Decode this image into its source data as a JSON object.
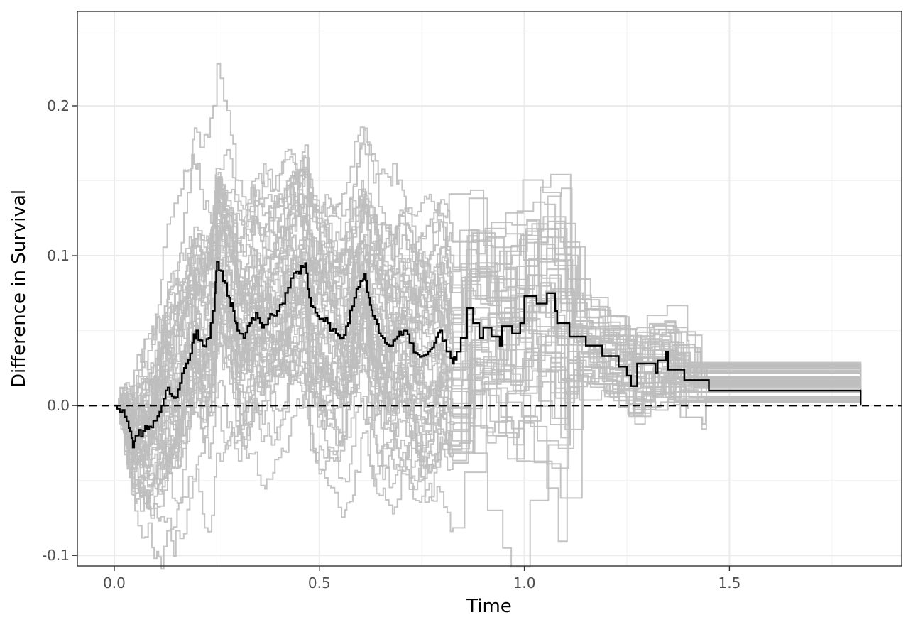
{
  "chart_data": {
    "type": "line",
    "title": "",
    "xlabel": "Time",
    "ylabel": "Difference in Survival",
    "xlim": [
      -0.09,
      1.92
    ],
    "ylim": [
      -0.107,
      0.263
    ],
    "x_ticks": [
      0.0,
      0.5,
      1.0,
      1.5
    ],
    "x_tick_labels": [
      "0.0",
      "0.5",
      "1.0",
      "1.5"
    ],
    "y_ticks": [
      -0.1,
      0.0,
      0.1,
      0.2
    ],
    "y_tick_labels": [
      "-0.1",
      "0.0",
      "0.1",
      "0.2"
    ],
    "grid": true,
    "legend": "none",
    "reference_line": {
      "y": 0.0,
      "style": "dashed",
      "color": "#000000"
    },
    "colors": {
      "replicates": "#bebebe",
      "observed": "#000000"
    },
    "replicate_count": 50,
    "replicate_seed": 20240611,
    "observed": {
      "style": "step",
      "points": [
        [
          0.0,
          0.0
        ],
        [
          0.02,
          -0.003
        ],
        [
          0.035,
          -0.015
        ],
        [
          0.045,
          -0.028
        ],
        [
          0.055,
          -0.02
        ],
        [
          0.07,
          -0.017
        ],
        [
          0.085,
          -0.014
        ],
        [
          0.1,
          -0.01
        ],
        [
          0.115,
          0.0
        ],
        [
          0.13,
          0.012
        ],
        [
          0.145,
          0.005
        ],
        [
          0.16,
          0.015
        ],
        [
          0.175,
          0.028
        ],
        [
          0.19,
          0.042
        ],
        [
          0.2,
          0.05
        ],
        [
          0.215,
          0.04
        ],
        [
          0.23,
          0.045
        ],
        [
          0.245,
          0.075
        ],
        [
          0.25,
          0.096
        ],
        [
          0.265,
          0.083
        ],
        [
          0.28,
          0.072
        ],
        [
          0.29,
          0.063
        ],
        [
          0.3,
          0.05
        ],
        [
          0.315,
          0.045
        ],
        [
          0.33,
          0.055
        ],
        [
          0.345,
          0.062
        ],
        [
          0.36,
          0.052
        ],
        [
          0.375,
          0.058
        ],
        [
          0.39,
          0.06
        ],
        [
          0.41,
          0.068
        ],
        [
          0.43,
          0.085
        ],
        [
          0.45,
          0.088
        ],
        [
          0.465,
          0.095
        ],
        [
          0.475,
          0.072
        ],
        [
          0.49,
          0.062
        ],
        [
          0.505,
          0.058
        ],
        [
          0.52,
          0.055
        ],
        [
          0.54,
          0.048
        ],
        [
          0.555,
          0.045
        ],
        [
          0.57,
          0.055
        ],
        [
          0.585,
          0.072
        ],
        [
          0.6,
          0.083
        ],
        [
          0.61,
          0.088
        ],
        [
          0.62,
          0.072
        ],
        [
          0.63,
          0.06
        ],
        [
          0.645,
          0.048
        ],
        [
          0.66,
          0.042
        ],
        [
          0.675,
          0.04
        ],
        [
          0.69,
          0.046
        ],
        [
          0.705,
          0.05
        ],
        [
          0.72,
          0.042
        ],
        [
          0.735,
          0.035
        ],
        [
          0.75,
          0.033
        ],
        [
          0.765,
          0.036
        ],
        [
          0.78,
          0.042
        ],
        [
          0.795,
          0.05
        ],
        [
          0.81,
          0.036
        ],
        [
          0.825,
          0.028
        ],
        [
          0.835,
          0.036
        ],
        [
          0.845,
          0.045
        ],
        [
          0.86,
          0.065
        ],
        [
          0.875,
          0.055
        ],
        [
          0.89,
          0.045
        ],
        [
          0.9,
          0.052
        ],
        [
          0.92,
          0.046
        ],
        [
          0.94,
          0.04
        ],
        [
          0.945,
          0.053
        ],
        [
          0.97,
          0.048
        ],
        [
          0.99,
          0.055
        ],
        [
          1.0,
          0.073
        ],
        [
          1.03,
          0.068
        ],
        [
          1.055,
          0.075
        ],
        [
          1.075,
          0.063
        ],
        [
          1.08,
          0.055
        ],
        [
          1.11,
          0.046
        ],
        [
          1.15,
          0.04
        ],
        [
          1.19,
          0.033
        ],
        [
          1.23,
          0.026
        ],
        [
          1.25,
          0.02
        ],
        [
          1.26,
          0.013
        ],
        [
          1.275,
          0.028
        ],
        [
          1.32,
          0.022
        ],
        [
          1.325,
          0.03
        ],
        [
          1.345,
          0.036
        ],
        [
          1.35,
          0.024
        ],
        [
          1.39,
          0.017
        ],
        [
          1.45,
          0.01
        ],
        [
          1.82,
          0.0
        ]
      ]
    }
  }
}
